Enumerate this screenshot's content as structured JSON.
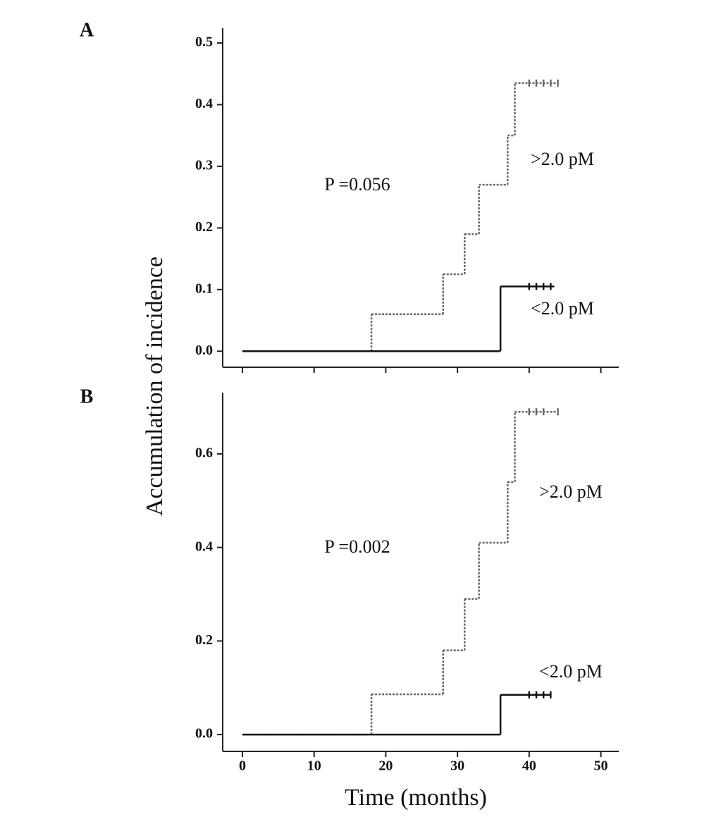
{
  "chart_data": [
    {
      "type": "step",
      "panel": "A",
      "ylabel": "Accumulation of incidence",
      "annotation": "P =0.056",
      "xlim": [
        -2.75,
        52.5
      ],
      "xticks": [
        0,
        10,
        20,
        30,
        40,
        50
      ],
      "show_xtick_labels": false,
      "ylim": [
        -0.026,
        0.524
      ],
      "yticks": [
        {
          "value": 0,
          "label": "0.0"
        },
        0.1,
        0.2,
        0.3,
        0.4,
        0.5
      ],
      "series": [
        {
          "name": ">2.0 pM",
          "color": "#666666",
          "dashed": true,
          "x": [
            0,
            18,
            28,
            31,
            33,
            37,
            38,
            44
          ],
          "values": [
            0,
            0.06,
            0.125,
            0.19,
            0.27,
            0.35,
            0.435,
            0.435
          ],
          "censored_x": [
            40,
            41,
            42,
            43,
            44
          ]
        },
        {
          "name": "<2.0 pM",
          "color": "#111111",
          "dashed": false,
          "x": [
            0,
            36,
            43.5
          ],
          "values": [
            0,
            0.105,
            0.105
          ],
          "censored_x": [
            40,
            41,
            42,
            43
          ]
        }
      ]
    },
    {
      "type": "step",
      "panel": "B",
      "xlabel": "Time (months)",
      "annotation": "P =0.002",
      "xlim": [
        -2.75,
        52.5
      ],
      "xticks": [
        0,
        10,
        20,
        30,
        40,
        50
      ],
      "show_xtick_labels": true,
      "ylim": [
        -0.036,
        0.731
      ],
      "yticks": [
        {
          "value": 0,
          "label": "0.0"
        },
        0.2,
        0.4,
        0.6
      ],
      "series": [
        {
          "name": ">2.0 pM",
          "color": "#666666",
          "dashed": true,
          "x": [
            0,
            18,
            28,
            31,
            33,
            37,
            38,
            44
          ],
          "values": [
            0,
            0.086,
            0.18,
            0.29,
            0.41,
            0.54,
            0.69,
            0.69
          ],
          "censored_x": [
            40,
            41,
            42,
            44
          ]
        },
        {
          "name": "<2.0 pM",
          "color": "#111111",
          "dashed": false,
          "x": [
            0,
            36,
            43
          ],
          "values": [
            0,
            0.085,
            0.085
          ],
          "censored_x": [
            40,
            41,
            42,
            43
          ]
        }
      ]
    }
  ]
}
